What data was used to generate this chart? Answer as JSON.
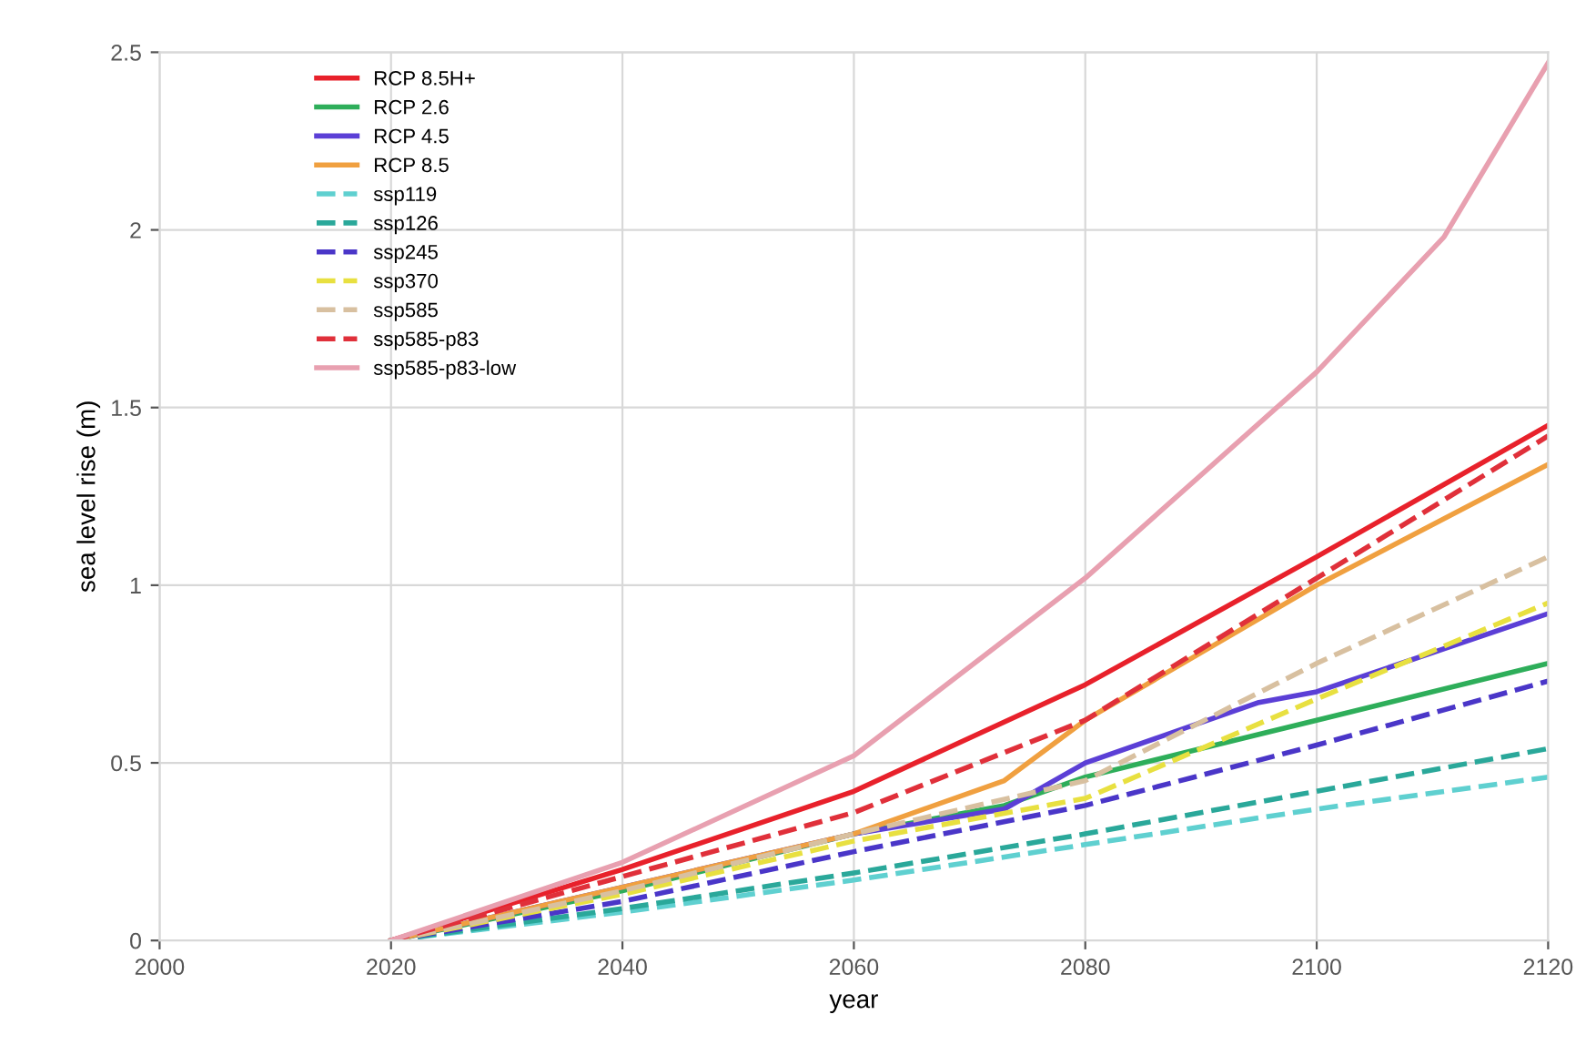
{
  "chart_data": {
    "type": "line",
    "xlabel": "year",
    "ylabel": "sea level rise (m)",
    "xlim": [
      2000,
      2120
    ],
    "xticks": [
      2000,
      2020,
      2040,
      2060,
      2080,
      2100,
      2120
    ],
    "ylim": [
      0,
      2.5
    ],
    "yticks": [
      0,
      0.5,
      1,
      1.5,
      2,
      2.5
    ],
    "grid": true,
    "legend": "top left",
    "series": [
      {
        "name": "RCP 8.5H+",
        "color": "#e8212b",
        "line_style": "solid",
        "x": [
          2020,
          2040,
          2060,
          2080,
          2100,
          2120
        ],
        "values": [
          0,
          0.2,
          0.42,
          0.72,
          1.08,
          1.45
        ]
      },
      {
        "name": "RCP 2.6",
        "color": "#2eae5a",
        "line_style": "solid",
        "x": [
          2020,
          2040,
          2060,
          2073,
          2080,
          2095,
          2100,
          2120
        ],
        "values": [
          0,
          0.14,
          0.3,
          0.38,
          0.46,
          0.58,
          0.62,
          0.78
        ]
      },
      {
        "name": "RCP 4.5",
        "color": "#5b3fd6",
        "line_style": "solid",
        "x": [
          2020,
          2040,
          2060,
          2073,
          2080,
          2095,
          2100,
          2120
        ],
        "values": [
          0,
          0.15,
          0.3,
          0.37,
          0.5,
          0.67,
          0.7,
          0.92
        ]
      },
      {
        "name": "RCP 8.5",
        "color": "#f0a040",
        "line_style": "solid",
        "x": [
          2020,
          2040,
          2060,
          2073,
          2080,
          2100,
          2120
        ],
        "values": [
          0,
          0.15,
          0.3,
          0.45,
          0.62,
          1.0,
          1.34
        ]
      },
      {
        "name": "ssp119",
        "color": "#5fd0d0",
        "line_style": "dashed",
        "x": [
          2020,
          2040,
          2060,
          2080,
          2100,
          2120
        ],
        "values": [
          0,
          0.08,
          0.17,
          0.27,
          0.37,
          0.46
        ]
      },
      {
        "name": "ssp126",
        "color": "#2aa89a",
        "line_style": "dashed",
        "x": [
          2020,
          2040,
          2060,
          2080,
          2100,
          2120
        ],
        "values": [
          0,
          0.09,
          0.19,
          0.3,
          0.42,
          0.54
        ]
      },
      {
        "name": "ssp245",
        "color": "#4a36c8",
        "line_style": "dashed",
        "x": [
          2020,
          2040,
          2060,
          2080,
          2100,
          2120
        ],
        "values": [
          0,
          0.11,
          0.25,
          0.38,
          0.55,
          0.73
        ]
      },
      {
        "name": "ssp370",
        "color": "#e8e040",
        "line_style": "dashed",
        "x": [
          2020,
          2040,
          2060,
          2080,
          2100,
          2120
        ],
        "values": [
          0,
          0.13,
          0.28,
          0.4,
          0.68,
          0.95
        ]
      },
      {
        "name": "ssp585",
        "color": "#d8c0a0",
        "line_style": "dashed",
        "x": [
          2020,
          2040,
          2060,
          2080,
          2100,
          2120
        ],
        "values": [
          0,
          0.14,
          0.3,
          0.45,
          0.78,
          1.08
        ]
      },
      {
        "name": "ssp585-p83",
        "color": "#e0303a",
        "line_style": "dashed",
        "x": [
          2020,
          2040,
          2060,
          2080,
          2100,
          2120
        ],
        "values": [
          0,
          0.18,
          0.36,
          0.62,
          1.02,
          1.42
        ]
      },
      {
        "name": "ssp585-p83-low",
        "color": "#e8a0b0",
        "line_style": "solid",
        "x": [
          2020,
          2040,
          2060,
          2080,
          2100,
          2111,
          2120
        ],
        "values": [
          0,
          0.22,
          0.52,
          1.02,
          1.6,
          1.98,
          2.47
        ]
      }
    ]
  }
}
